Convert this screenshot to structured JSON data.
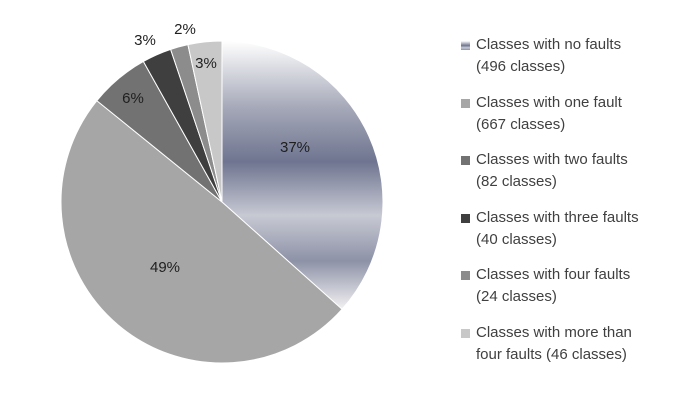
{
  "chart_data": {
    "type": "pie",
    "title": "",
    "start_angle_deg": 0,
    "direction": "clockwise",
    "slices": [
      {
        "label_line1": "Classes with no faults",
        "label_line2": "(496 classes)",
        "classes": 496,
        "value": 37,
        "value_label": "37%",
        "color": "#8a8fa6",
        "fill_style": "gradient"
      },
      {
        "label_line1": "Classes with one fault",
        "label_line2": "(667 classes)",
        "classes": 667,
        "value": 49,
        "value_label": "49%",
        "color": "#a6a6a6",
        "fill_style": "solid"
      },
      {
        "label_line1": "Classes with two faults",
        "label_line2": "(82 classes)",
        "classes": 82,
        "value": 6,
        "value_label": "6%",
        "color": "#727272",
        "fill_style": "solid"
      },
      {
        "label_line1": "Classes with three faults",
        "label_line2": "(40 classes)",
        "classes": 40,
        "value": 3,
        "value_label": "3%",
        "color": "#3f3f3f",
        "fill_style": "solid"
      },
      {
        "label_line1": "Classes with four faults",
        "label_line2": "(24 classes)",
        "classes": 24,
        "value": 2,
        "value_label": "2%",
        "color": "#8c8c8c",
        "fill_style": "solid"
      },
      {
        "label_line1": "Classes with more than",
        "label_line2": "four faults (46 classes)",
        "classes": 46,
        "value": 3,
        "value_label": "3%",
        "color": "#c8c8c8",
        "fill_style": "solid"
      }
    ],
    "legend_position": "right"
  }
}
